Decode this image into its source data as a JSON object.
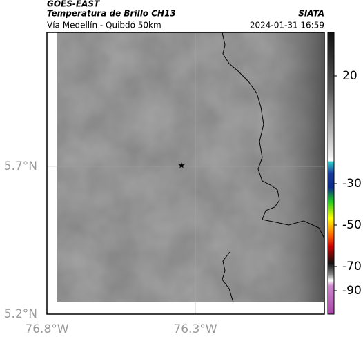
{
  "header": {
    "title": "GOES-EAST",
    "product": "Temperatura de Brillo CH13",
    "route": "Vía Medellín - Quibdó 50km",
    "source": "SIATA",
    "datetime": "2024-01-31 16:59"
  },
  "map": {
    "lat_ticks": [
      "5.7°N",
      "5.2°N"
    ],
    "lon_ticks": [
      "76.8°W",
      "76.3°W"
    ]
  },
  "colorbar": {
    "ticks": [
      20,
      -30,
      -50,
      -70,
      -90
    ]
  }
}
